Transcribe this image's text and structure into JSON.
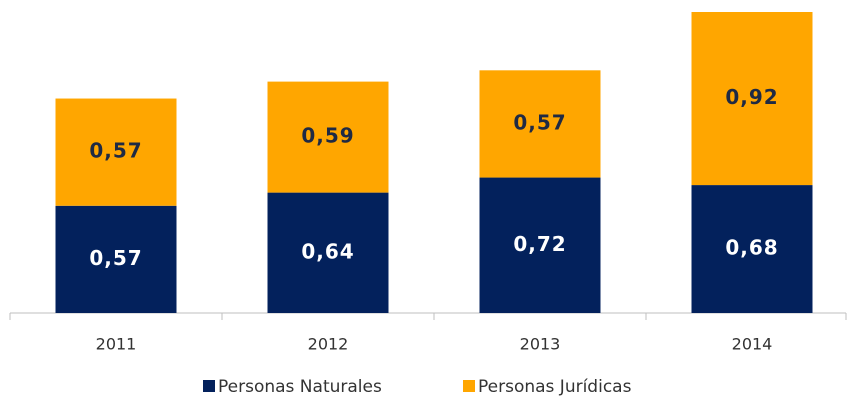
{
  "chart_data": {
    "type": "stacked_bar",
    "categories": [
      "2011",
      "2012",
      "2013",
      "2014"
    ],
    "series": [
      {
        "name": "Personas Naturales",
        "color": "#03215c",
        "label_color": "#ffffff",
        "values": [
          0.57,
          0.64,
          0.72,
          0.68
        ],
        "value_labels": [
          "0,57",
          "0,64",
          "0,72",
          "0,68"
        ]
      },
      {
        "name": "Personas Jurídicas",
        "color": "#ffa600",
        "label_color": "#1f2a44",
        "values": [
          0.57,
          0.59,
          0.57,
          0.92
        ],
        "value_labels": [
          "0,57",
          "0,59",
          "0,57",
          "0,92"
        ]
      }
    ]
  }
}
